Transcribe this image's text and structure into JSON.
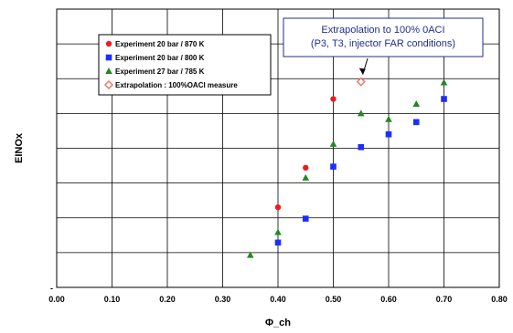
{
  "chart_data": {
    "type": "scatter",
    "xlabel": "Φ_ch",
    "ylabel": "EINOx",
    "xlim": [
      0.0,
      0.8
    ],
    "x_ticks": [
      "0.00",
      "0.10",
      "0.20",
      "0.30",
      "0.40",
      "0.50",
      "0.60",
      "0.70",
      "0.80"
    ],
    "y_tick_labels": [
      "-"
    ],
    "y_gridlines": 7,
    "grid": true,
    "legend_position": "top-left",
    "series": [
      {
        "name": "Experiment 20 bar / 870 K",
        "marker": "circle",
        "color": "#ee1c1c",
        "points": [
          [
            0.4,
            0.288
          ],
          [
            0.45,
            0.43
          ],
          [
            0.5,
            0.677
          ]
        ]
      },
      {
        "name": "Experiment 20 bar / 800 K",
        "marker": "square",
        "color": "#1c2eff",
        "points": [
          [
            0.4,
            0.161
          ],
          [
            0.45,
            0.247
          ],
          [
            0.5,
            0.434
          ],
          [
            0.55,
            0.504
          ],
          [
            0.6,
            0.55
          ],
          [
            0.65,
            0.594
          ],
          [
            0.7,
            0.677
          ]
        ]
      },
      {
        "name": "Experiment 27 bar / 785 K",
        "marker": "triangle",
        "color": "#1f8a1f",
        "points": [
          [
            0.35,
            0.116
          ],
          [
            0.4,
            0.198
          ],
          [
            0.45,
            0.394
          ],
          [
            0.5,
            0.515
          ],
          [
            0.55,
            0.625
          ],
          [
            0.6,
            0.604
          ],
          [
            0.65,
            0.659
          ],
          [
            0.7,
            0.736
          ]
        ]
      },
      {
        "name": "Extrapolation : 100%OACI measure",
        "marker": "diamond-open",
        "color": "#f07060",
        "points": [
          [
            0.55,
            0.739
          ]
        ]
      }
    ],
    "annotation": {
      "lines": [
        "Extrapolation to 100% 0ACI",
        "(P3, T3, injector FAR conditions)"
      ],
      "target": [
        0.55,
        0.739
      ]
    }
  }
}
